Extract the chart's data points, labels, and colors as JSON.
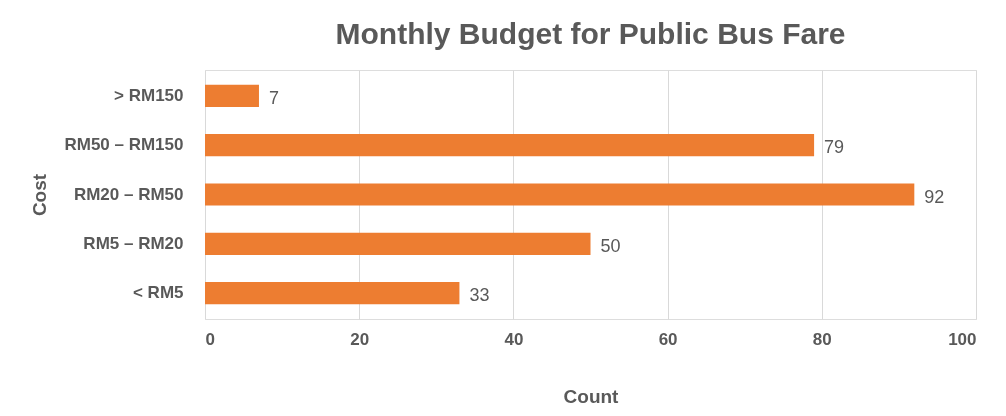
{
  "chart_data": {
    "type": "bar",
    "orientation": "horizontal",
    "title": "Monthly Budget for Public Bus Fare",
    "xlabel": "Count",
    "ylabel": "Cost",
    "categories": [
      "> RM150",
      "RM50 – RM150",
      "RM20 – RM50",
      "RM5 – RM20",
      "< RM5"
    ],
    "values": [
      7,
      79,
      92,
      50,
      33
    ],
    "color": "#ed7d31",
    "xlim": [
      0,
      100
    ],
    "xticks": [
      0,
      20,
      40,
      60,
      80,
      100
    ],
    "grid": "x",
    "data_labels": true
  }
}
